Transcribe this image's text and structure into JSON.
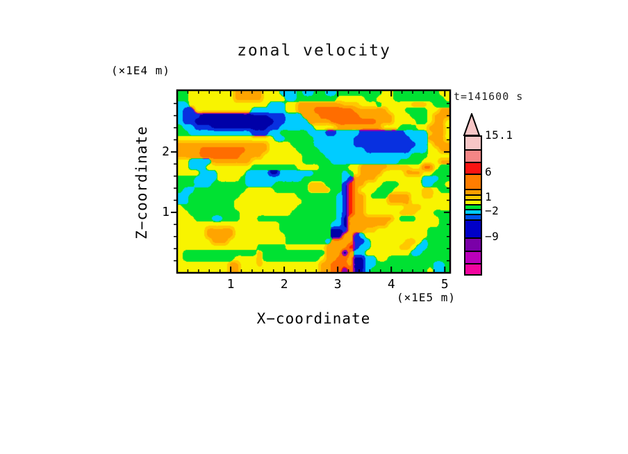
{
  "title": "zonal velocity",
  "timestamp": "t=141600 s",
  "axes": {
    "x": {
      "title": "X−coordinate",
      "unit": "(×1E5 m)",
      "min": 0,
      "max": 5.1,
      "major_ticks": [
        1,
        2,
        3,
        4,
        5
      ],
      "tick_labels": [
        "1",
        "2",
        "3",
        "4",
        "5"
      ],
      "minor_step": 0.2
    },
    "z": {
      "title": "Z−coordinate",
      "unit": "(×1E4 m)",
      "min": 0,
      "max": 3.02,
      "major_ticks": [
        1,
        2
      ],
      "tick_labels": [
        "1",
        "2"
      ],
      "minor_step": 0.2
    }
  },
  "colorbar": {
    "tip_color": "#F7C6C6",
    "labels": [
      {
        "text": "15.1",
        "y": 195
      },
      {
        "text": "6",
        "y": 248
      },
      {
        "text": "1",
        "y": 284
      },
      {
        "text": "−2",
        "y": 304
      },
      {
        "text": "−9",
        "y": 341
      }
    ],
    "segments": [
      {
        "color": "#F7C6C6",
        "h": 18
      },
      {
        "color": "#F48585",
        "h": 18
      },
      {
        "color": "#FB1412",
        "h": 17
      },
      {
        "color": "#FF7D00",
        "h": 22
      },
      {
        "color": "#FF9E00",
        "h": 8
      },
      {
        "color": "#FFC800",
        "h": 7
      },
      {
        "color": "#F8F400",
        "h": 7
      },
      {
        "color": "#00E132",
        "h": 7
      },
      {
        "color": "#00CCFF",
        "h": 7
      },
      {
        "color": "#0055F0",
        "h": 8
      },
      {
        "color": "#0000C8",
        "h": 26
      },
      {
        "color": "#7A00A8",
        "h": 19
      },
      {
        "color": "#BB00BB",
        "h": 18
      },
      {
        "color": "#F2059F",
        "h": 16
      }
    ]
  },
  "chart_data": {
    "type": "heatmap",
    "subtype": "filled_contour",
    "title": "zonal velocity",
    "xlabel": "X−coordinate (×1E5 m)",
    "ylabel": "Z−coordinate (×1E4 m)",
    "annotation": "t=141600 s",
    "x_range": [
      0,
      5.1
    ],
    "z_range": [
      0,
      3.02
    ],
    "contour_level_labels": [
      "15.1",
      "6",
      "1",
      "−2",
      "−9"
    ],
    "legend_position": "right",
    "grid_on": false,
    "palette": {
      "Y": "#F8F400",
      "G": "#00E132",
      "C": "#00CCFF",
      "B": "#0830E0",
      "N": "#0000A8",
      "O": "#FFA400",
      "D": "#FF6D00",
      "R": "#FF2000",
      "A": "#FFC800",
      "P": "#9000B0"
    },
    "grid_cols": 48,
    "grid_rows": 32,
    "grid": [
      "GGYYYYYYYYOOOOOYYYCCCGCCGGCCGGGGGGGGYYGGGGGGGGYY",
      "GGYYYYYYYYOOOOOYYYYCCGGGGGGGYYYYYGGYYYGGGGGGGGGY",
      "CCYYYYYYYYYYYYYYCCCYYOOOOOOOOAAAYYYGYYYYYAAAYGGG",
      "CBBYYYYYYYYYYCCCCCCYYOOODDDDDDDOOOOOOYYYGGGGYYOO",
      "CBBBNNNNNNNNNNNNBBBCCCOOODDDDDDDOOOOOOYYYGGGYOOO",
      "CBBNNNNNNNNNNNNNNBBCCCCOOOODDDDDDDDOOOYYYYGGYOOY",
      "GCCBBBNNNNNNNNNNBBCCCCCCYYYYOOOOOOOOYYYGGGYYOOOY",
      "GGCCCCCCCCCCCBBBCCGGGGGCCCBBCCCCBBBBBBBBCCCCAOOY",
      "YYYYYYYYYYYYYYYYYCCGGGGGCCCCCCCBBBBBBBBBBCCCOOOY",
      "OOOOOOOOOOOOOOOOYYYYGGGGCCCCCCCBBBBBBBBBBBCCYOOO",
      "OOOODDDDDDDDOOOOYYYYYGGGGCCCCCCCCBBBBBBBBCCCYYOO",
      "OOOODDDDDDDOOOOYYYYYYYGGGGCCCCCCCCCCCCCCCGGGYYYY",
      "YYCCCCOOOOOOOYYYYYYYYYGGGGGCCCCCCCCCCCCGGGGYYYOO",
      "YYCCCYYYYYYYYGGGGGGGGYYYYGGGGGYYOOOOOAAAAYYDDYGG",
      "YYYYCCCYYYYYCCCCNNCCCCCCGGGGGCGYOOOOYYYYOOOYYGGG",
      "GGGCCCCYYYYGCCCCCCCCCCGGGGGGGCBOOOOYYYYYYYYCCCGG",
      "GGGCCCGGGGGGCCCCCGGGGGGAAAGGGBROOYYYGGGYYYYCCGGY",
      "GCCGGGGGGGGGYYYYYGGGGGGAAAAGGBROYYYGGGYYYYYAAYGG",
      "CCGGGGGGGGGYYYYYYYYYYGGGGGGGCBROOYGGGOOOOYYAAYYY",
      "CCGGGGGGGGYYYYYYYYYYYYGGGGGGCBROOYYYYOOOOYYYYYYY",
      "YGGGGGGGGGYYYYYYYYYYYGGGGGGGCBROOYYYYYYYAAAYYYYY",
      "YYGGGGGGGGGYYYYYYYYYGGGGGGGGCBROOYYYYYYAAAYYYGGG",
      "YYYGGGCCGGGYYYGGGGGGGGGGGGGGCNOOOOOOOOYGGGYYYYGG",
      "YYYYYYYYYYYYYYYYYYGGGGGGGGGCCNOOOOOOOYYYYYYYYYGG",
      "YYYYYOOOOOYYYYYYYYGGGGGGGGGNNBOOOAAYYYYYYYYYGGGG",
      "YYYYYOOOOOYYYYYYYYYGGGGGGGGNNOOBCYYYYYYYYYYYGGGG",
      "YYYYYYOOOYYYYYYYYYYGGGGGGGCOOOOBBCYYYYYYAAYCGGGG",
      "YYYYYYYYYYYYYYGGGGGYYYYYYYOOOORBCCYYYYYAAYCCGGGG",
      "YGGGGGGGGGGGGGAGGGGGGGGGGGOOONOCCYYYYYYYYCCGGGGG",
      "YGGGGGGGGGYYYYAGGGGGGGGGGYOODDONNCCYYGGGGGGGGGGG",
      "YYYYYYYYYOOYYYAYYYYYYYYYYOODDDONNCCGGGGGGGGGGCCG",
      "YYYYYYYYYOOYYYYYYYYYYYYYYOODDPDNNCGGGGGGGGGGYCCG"
    ]
  }
}
